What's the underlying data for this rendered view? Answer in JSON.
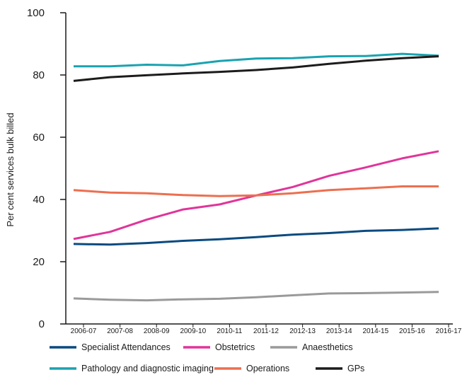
{
  "chart_data": {
    "type": "line",
    "ylabel": "Per cent services bulk billed",
    "xlabel": "",
    "ylim": [
      0,
      100
    ],
    "yticks": [
      0,
      20,
      40,
      60,
      80,
      100
    ],
    "categories": [
      "2006-07",
      "2007-08",
      "2008-09",
      "2009-10",
      "2010-11",
      "2011-12",
      "2012-13",
      "2013-14",
      "2014-15",
      "2015-16",
      "2016-17"
    ],
    "grid": false,
    "legend_position": "bottom",
    "series": [
      {
        "name": "Specialist Attendances",
        "color": "#0b4a80",
        "values": [
          25.7,
          25.5,
          26.0,
          26.7,
          27.2,
          27.9,
          28.7,
          29.2,
          29.9,
          30.2,
          30.7
        ]
      },
      {
        "name": "Obstetrics",
        "color": "#e0359a",
        "values": [
          27.3,
          29.6,
          33.5,
          36.8,
          38.4,
          41.3,
          44.0,
          47.6,
          50.3,
          53.2,
          55.5
        ]
      },
      {
        "name": "Anaesthetics",
        "color": "#9a9a9a",
        "values": [
          8.2,
          7.8,
          7.6,
          7.9,
          8.1,
          8.6,
          9.2,
          9.8,
          9.9,
          10.1,
          10.3
        ]
      },
      {
        "name": "Pathology and diagnostic imaging",
        "color": "#1aa3b0",
        "values": [
          82.8,
          82.8,
          83.3,
          83.1,
          84.5,
          85.3,
          85.4,
          86.0,
          86.1,
          86.8,
          86.2
        ]
      },
      {
        "name": "Operations",
        "color": "#ec6f50",
        "values": [
          43.0,
          42.2,
          42.0,
          41.4,
          41.1,
          41.3,
          42.0,
          43.0,
          43.6,
          44.2,
          44.2
        ]
      },
      {
        "name": "GPs",
        "color": "#1c1c1c",
        "values": [
          78.1,
          79.3,
          79.9,
          80.5,
          81.0,
          81.6,
          82.4,
          83.6,
          84.6,
          85.4,
          86.0
        ]
      }
    ]
  }
}
